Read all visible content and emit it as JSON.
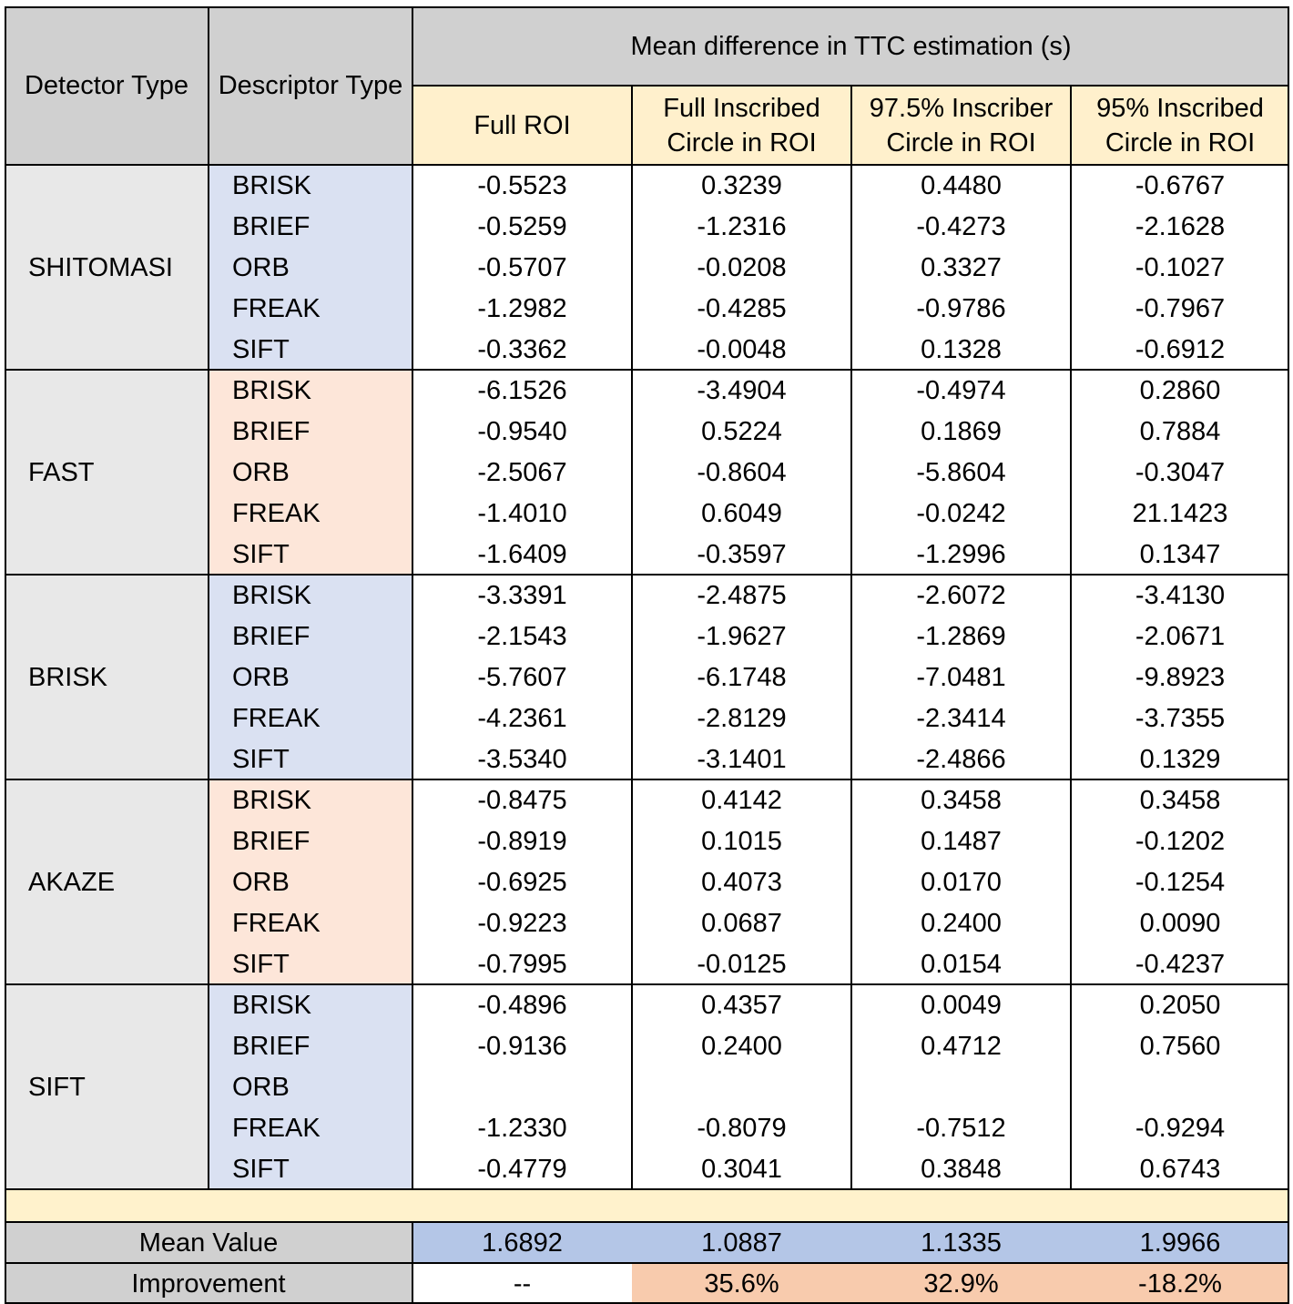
{
  "header": {
    "detector_type": "Detector Type",
    "descriptor_type": "Descriptor Type",
    "group_title": "Mean difference in TTC estimation (s)",
    "columns": [
      [
        "Full ROI"
      ],
      [
        "Full Inscribed",
        "Circle in ROI"
      ],
      [
        "97.5% Inscriber",
        "Circle in ROI"
      ],
      [
        "95% Inscribed",
        "Circle in ROI"
      ]
    ]
  },
  "groups": [
    {
      "detector": "SHITOMASI",
      "shade": "blue",
      "rows": [
        {
          "descriptor": "BRISK",
          "values": [
            "-0.5523",
            "0.3239",
            "0.4480",
            "-0.6767"
          ]
        },
        {
          "descriptor": "BRIEF",
          "values": [
            "-0.5259",
            "-1.2316",
            "-0.4273",
            "-2.1628"
          ]
        },
        {
          "descriptor": "ORB",
          "values": [
            "-0.5707",
            "-0.0208",
            "0.3327",
            "-0.1027"
          ]
        },
        {
          "descriptor": "FREAK",
          "values": [
            "-1.2982",
            "-0.4285",
            "-0.9786",
            "-0.7967"
          ]
        },
        {
          "descriptor": "SIFT",
          "values": [
            "-0.3362",
            "-0.0048",
            "0.1328",
            "-0.6912"
          ]
        }
      ]
    },
    {
      "detector": "FAST",
      "shade": "peach",
      "rows": [
        {
          "descriptor": "BRISK",
          "values": [
            "-6.1526",
            "-3.4904",
            "-0.4974",
            "0.2860"
          ]
        },
        {
          "descriptor": "BRIEF",
          "values": [
            "-0.9540",
            "0.5224",
            "0.1869",
            "0.7884"
          ]
        },
        {
          "descriptor": "ORB",
          "values": [
            "-2.5067",
            "-0.8604",
            "-5.8604",
            "-0.3047"
          ]
        },
        {
          "descriptor": "FREAK",
          "values": [
            "-1.4010",
            "0.6049",
            "-0.0242",
            "21.1423"
          ]
        },
        {
          "descriptor": "SIFT",
          "values": [
            "-1.6409",
            "-0.3597",
            "-1.2996",
            "0.1347"
          ]
        }
      ]
    },
    {
      "detector": "BRISK",
      "shade": "blue",
      "rows": [
        {
          "descriptor": "BRISK",
          "values": [
            "-3.3391",
            "-2.4875",
            "-2.6072",
            "-3.4130"
          ]
        },
        {
          "descriptor": "BRIEF",
          "values": [
            "-2.1543",
            "-1.9627",
            "-1.2869",
            "-2.0671"
          ]
        },
        {
          "descriptor": "ORB",
          "values": [
            "-5.7607",
            "-6.1748",
            "-7.0481",
            "-9.8923"
          ]
        },
        {
          "descriptor": "FREAK",
          "values": [
            "-4.2361",
            "-2.8129",
            "-2.3414",
            "-3.7355"
          ]
        },
        {
          "descriptor": "SIFT",
          "values": [
            "-3.5340",
            "-3.1401",
            "-2.4866",
            "0.1329"
          ]
        }
      ]
    },
    {
      "detector": "AKAZE",
      "shade": "peach",
      "rows": [
        {
          "descriptor": "BRISK",
          "values": [
            "-0.8475",
            "0.4142",
            "0.3458",
            "0.3458"
          ]
        },
        {
          "descriptor": "BRIEF",
          "values": [
            "-0.8919",
            "0.1015",
            "0.1487",
            "-0.1202"
          ]
        },
        {
          "descriptor": "ORB",
          "values": [
            "-0.6925",
            "0.4073",
            "0.0170",
            "-0.1254"
          ]
        },
        {
          "descriptor": "FREAK",
          "values": [
            "-0.9223",
            "0.0687",
            "0.2400",
            "0.0090"
          ]
        },
        {
          "descriptor": "SIFT",
          "values": [
            "-0.7995",
            "-0.0125",
            "0.0154",
            "-0.4237"
          ]
        }
      ]
    },
    {
      "detector": "SIFT",
      "shade": "blue",
      "rows": [
        {
          "descriptor": "BRISK",
          "values": [
            "-0.4896",
            "0.4357",
            "0.0049",
            "0.2050"
          ]
        },
        {
          "descriptor": "BRIEF",
          "values": [
            "-0.9136",
            "0.2400",
            "0.4712",
            "0.7560"
          ]
        },
        {
          "descriptor": "ORB",
          "values": [
            "",
            "",
            "",
            ""
          ]
        },
        {
          "descriptor": "FREAK",
          "values": [
            "-1.2330",
            "-0.8079",
            "-0.7512",
            "-0.9294"
          ]
        },
        {
          "descriptor": "SIFT",
          "values": [
            "-0.4779",
            "0.3041",
            "0.3848",
            "0.6743"
          ]
        }
      ]
    }
  ],
  "summary": {
    "mean_label": "Mean Value",
    "mean_values": [
      "1.6892",
      "1.0887",
      "1.1335",
      "1.9966"
    ],
    "improvement_label": "Improvement",
    "improvement_values": [
      "--",
      "35.6%",
      "32.9%",
      "-18.2%"
    ]
  }
}
